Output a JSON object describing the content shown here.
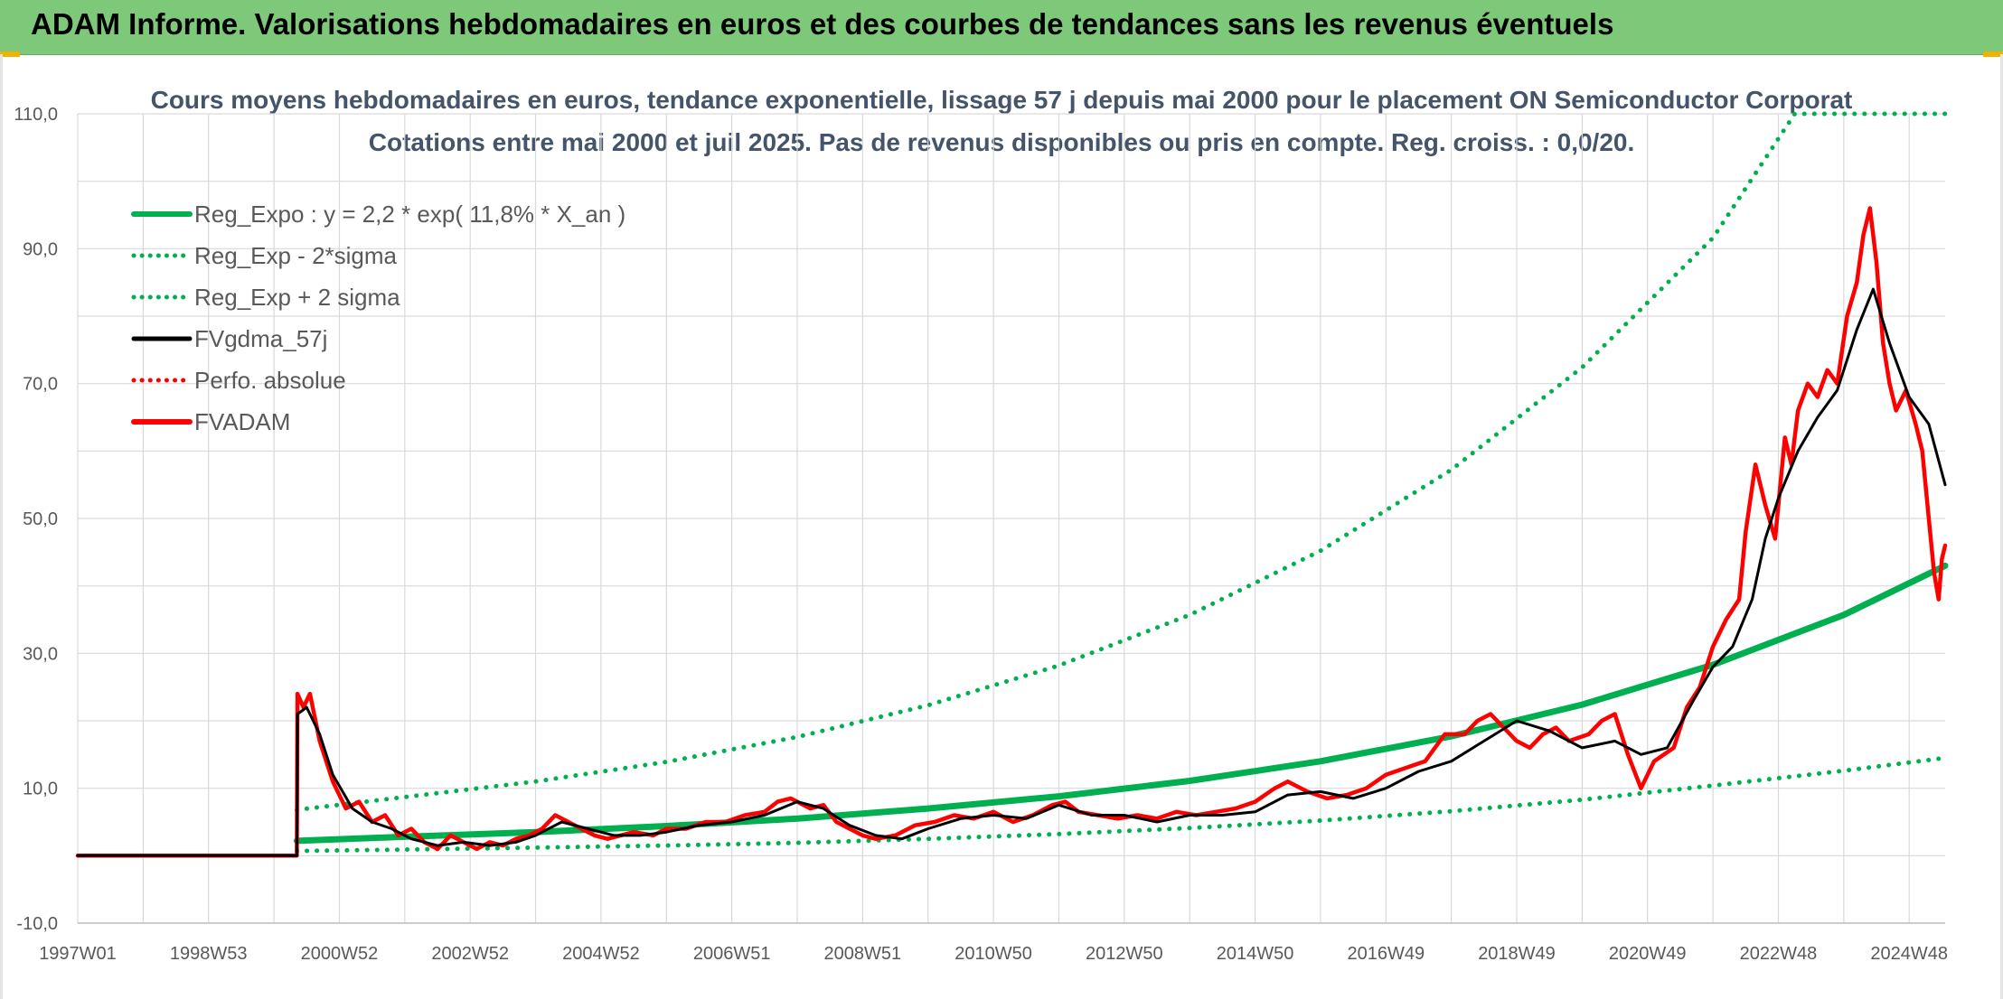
{
  "header": {
    "title": "ADAM Informe. Valorisations hebdomadaires en euros et des courbes de tendances sans les revenus éventuels"
  },
  "colors": {
    "header_bg": "#7ec87a",
    "green": "#00b050",
    "red": "#ff0000",
    "black": "#000000"
  },
  "chart_data": {
    "type": "line",
    "title": "Cours moyens hebdomadaires en euros, tendance exponentielle, lissage 57 j depuis mai 2000 pour le placement ON Semiconductor Corporat",
    "subtitle": "Cotations entre mai 2000 et juil 2025. Pas de revenus disponibles ou pris en compte. Reg. croiss. : 0,0/20.",
    "xlabel": "",
    "ylabel": "",
    "ylim": [
      -10,
      110
    ],
    "y_ticks": [
      "110,0",
      "90,0",
      "70,0",
      "50,0",
      "30,0",
      "10,0",
      "-10,0"
    ],
    "x_range": [
      1997.0,
      2025.55
    ],
    "x_ticks": [
      {
        "label": "1997W01",
        "year": 1997.0
      },
      {
        "label": "1998W53",
        "year": 1999.0
      },
      {
        "label": "2000W52",
        "year": 2001.0
      },
      {
        "label": "2002W52",
        "year": 2003.0
      },
      {
        "label": "2004W52",
        "year": 2005.0
      },
      {
        "label": "2006W51",
        "year": 2007.0
      },
      {
        "label": "2008W51",
        "year": 2009.0
      },
      {
        "label": "2010W50",
        "year": 2011.0
      },
      {
        "label": "2012W50",
        "year": 2013.0
      },
      {
        "label": "2014W50",
        "year": 2015.0
      },
      {
        "label": "2016W49",
        "year": 2017.0
      },
      {
        "label": "2018W49",
        "year": 2019.0
      },
      {
        "label": "2020W49",
        "year": 2021.0
      },
      {
        "label": "2022W48",
        "year": 2023.0
      },
      {
        "label": "2024W48",
        "year": 2025.0
      }
    ],
    "grid": true,
    "legend_position": "top-left",
    "series": [
      {
        "name": "Reg_Expo : y = 2,2 * exp( 11,8% *  X_an )",
        "color": "#00b050",
        "style": "solid",
        "points": [
          [
            2000.35,
            2.2
          ],
          [
            2002,
            2.8
          ],
          [
            2004,
            3.5
          ],
          [
            2006,
            4.4
          ],
          [
            2008,
            5.5
          ],
          [
            2010,
            7.0
          ],
          [
            2012,
            8.8
          ],
          [
            2014,
            11.1
          ],
          [
            2016,
            14.0
          ],
          [
            2018,
            17.7
          ],
          [
            2020,
            22.4
          ],
          [
            2022,
            28.3
          ],
          [
            2024,
            35.7
          ],
          [
            2025.55,
            43.0
          ]
        ]
      },
      {
        "name": "Reg_Exp - 2*sigma",
        "color": "#00b050",
        "style": "dotted",
        "points": [
          [
            2000.35,
            0.7
          ],
          [
            2002,
            0.9
          ],
          [
            2004,
            1.2
          ],
          [
            2006,
            1.5
          ],
          [
            2008,
            1.9
          ],
          [
            2010,
            2.5
          ],
          [
            2012,
            3.2
          ],
          [
            2014,
            4.1
          ],
          [
            2016,
            5.2
          ],
          [
            2018,
            6.6
          ],
          [
            2020,
            8.3
          ],
          [
            2022,
            10.4
          ],
          [
            2024,
            12.6
          ],
          [
            2025.55,
            14.5
          ]
        ]
      },
      {
        "name": "Reg_Exp + 2 sigma",
        "color": "#00b050",
        "style": "dotted",
        "points": [
          [
            2000.35,
            6.8
          ],
          [
            2002,
            8.7
          ],
          [
            2004,
            11.0
          ],
          [
            2006,
            13.9
          ],
          [
            2008,
            17.6
          ],
          [
            2010,
            22.3
          ],
          [
            2012,
            28.2
          ],
          [
            2014,
            35.7
          ],
          [
            2016,
            45.2
          ],
          [
            2018,
            57.2
          ],
          [
            2020,
            72.4
          ],
          [
            2022,
            91.6
          ],
          [
            2023.25,
            110.0
          ],
          [
            2025.55,
            110.0
          ]
        ]
      },
      {
        "name": "FVgdma_57j",
        "color": "#000000",
        "style": "solid",
        "points": [
          [
            1997.0,
            0
          ],
          [
            2000.35,
            0
          ],
          [
            2000.36,
            21
          ],
          [
            2000.5,
            22
          ],
          [
            2000.7,
            18
          ],
          [
            2000.9,
            12
          ],
          [
            2001.2,
            7
          ],
          [
            2001.5,
            5
          ],
          [
            2001.8,
            4
          ],
          [
            2002.1,
            2.5
          ],
          [
            2002.5,
            1.5
          ],
          [
            2002.9,
            2
          ],
          [
            2003.3,
            1.5
          ],
          [
            2003.7,
            2
          ],
          [
            2004.0,
            3
          ],
          [
            2004.4,
            5
          ],
          [
            2004.8,
            4
          ],
          [
            2005.2,
            3
          ],
          [
            2005.6,
            3
          ],
          [
            2006.0,
            3.5
          ],
          [
            2006.5,
            4.5
          ],
          [
            2007.0,
            5
          ],
          [
            2007.5,
            6
          ],
          [
            2008.0,
            8
          ],
          [
            2008.4,
            7
          ],
          [
            2008.8,
            4.5
          ],
          [
            2009.2,
            3
          ],
          [
            2009.6,
            2.5
          ],
          [
            2010.0,
            4
          ],
          [
            2010.5,
            5.5
          ],
          [
            2011.0,
            6
          ],
          [
            2011.5,
            5.5
          ],
          [
            2012.0,
            7.5
          ],
          [
            2012.5,
            6
          ],
          [
            2013.0,
            6
          ],
          [
            2013.5,
            5
          ],
          [
            2014.0,
            6
          ],
          [
            2014.5,
            6
          ],
          [
            2015.0,
            6.5
          ],
          [
            2015.5,
            9
          ],
          [
            2016.0,
            9.5
          ],
          [
            2016.5,
            8.5
          ],
          [
            2017.0,
            10
          ],
          [
            2017.5,
            12.5
          ],
          [
            2018.0,
            14
          ],
          [
            2018.5,
            17
          ],
          [
            2019.0,
            20
          ],
          [
            2019.5,
            18.5
          ],
          [
            2020.0,
            16
          ],
          [
            2020.5,
            17
          ],
          [
            2020.9,
            15
          ],
          [
            2021.3,
            16
          ],
          [
            2021.7,
            23
          ],
          [
            2022.0,
            28
          ],
          [
            2022.3,
            31
          ],
          [
            2022.6,
            38
          ],
          [
            2022.8,
            47
          ],
          [
            2023.0,
            53
          ],
          [
            2023.3,
            60
          ],
          [
            2023.6,
            65
          ],
          [
            2023.9,
            69
          ],
          [
            2024.2,
            78
          ],
          [
            2024.45,
            84
          ],
          [
            2024.7,
            76
          ],
          [
            2025.0,
            68
          ],
          [
            2025.3,
            64
          ],
          [
            2025.55,
            55
          ]
        ]
      },
      {
        "name": "Perfo. absolue",
        "color": "#ff0000",
        "style": "dotted",
        "points": []
      },
      {
        "name": "FVADAM",
        "color": "#ff0000",
        "style": "solid",
        "points": [
          [
            1997.0,
            0
          ],
          [
            2000.35,
            0
          ],
          [
            2000.36,
            24
          ],
          [
            2000.45,
            22
          ],
          [
            2000.55,
            24
          ],
          [
            2000.7,
            17
          ],
          [
            2000.9,
            11
          ],
          [
            2001.1,
            7
          ],
          [
            2001.3,
            8
          ],
          [
            2001.5,
            5
          ],
          [
            2001.7,
            6
          ],
          [
            2001.9,
            3
          ],
          [
            2002.1,
            4
          ],
          [
            2002.3,
            2
          ],
          [
            2002.5,
            1
          ],
          [
            2002.7,
            3
          ],
          [
            2002.9,
            2
          ],
          [
            2003.1,
            1
          ],
          [
            2003.3,
            2
          ],
          [
            2003.5,
            1.5
          ],
          [
            2003.7,
            2.5
          ],
          [
            2003.9,
            3
          ],
          [
            2004.1,
            4
          ],
          [
            2004.3,
            6
          ],
          [
            2004.5,
            5
          ],
          [
            2004.7,
            4
          ],
          [
            2004.9,
            3
          ],
          [
            2005.1,
            2.5
          ],
          [
            2005.3,
            3
          ],
          [
            2005.5,
            3.5
          ],
          [
            2005.8,
            3
          ],
          [
            2006.0,
            4
          ],
          [
            2006.3,
            4
          ],
          [
            2006.6,
            5
          ],
          [
            2006.9,
            5
          ],
          [
            2007.2,
            6
          ],
          [
            2007.5,
            6.5
          ],
          [
            2007.7,
            8
          ],
          [
            2007.9,
            8.5
          ],
          [
            2008.2,
            7
          ],
          [
            2008.4,
            7.5
          ],
          [
            2008.6,
            5
          ],
          [
            2008.8,
            4
          ],
          [
            2009.0,
            3
          ],
          [
            2009.2,
            2.5
          ],
          [
            2009.5,
            3
          ],
          [
            2009.8,
            4.5
          ],
          [
            2010.1,
            5
          ],
          [
            2010.4,
            6
          ],
          [
            2010.7,
            5.5
          ],
          [
            2011.0,
            6.5
          ],
          [
            2011.3,
            5
          ],
          [
            2011.6,
            6
          ],
          [
            2011.9,
            7.5
          ],
          [
            2012.1,
            8
          ],
          [
            2012.3,
            6.5
          ],
          [
            2012.6,
            6
          ],
          [
            2012.9,
            5.5
          ],
          [
            2013.2,
            6
          ],
          [
            2013.5,
            5.5
          ],
          [
            2013.8,
            6.5
          ],
          [
            2014.1,
            6
          ],
          [
            2014.4,
            6.5
          ],
          [
            2014.7,
            7
          ],
          [
            2015.0,
            8
          ],
          [
            2015.3,
            10
          ],
          [
            2015.5,
            11
          ],
          [
            2015.8,
            9.5
          ],
          [
            2016.1,
            8.5
          ],
          [
            2016.4,
            9
          ],
          [
            2016.7,
            10
          ],
          [
            2017.0,
            12
          ],
          [
            2017.3,
            13
          ],
          [
            2017.6,
            14
          ],
          [
            2017.9,
            18
          ],
          [
            2018.2,
            18
          ],
          [
            2018.4,
            20
          ],
          [
            2018.6,
            21
          ],
          [
            2018.8,
            19
          ],
          [
            2019.0,
            17
          ],
          [
            2019.2,
            16
          ],
          [
            2019.4,
            18
          ],
          [
            2019.6,
            19
          ],
          [
            2019.8,
            17
          ],
          [
            2020.1,
            18
          ],
          [
            2020.3,
            20
          ],
          [
            2020.5,
            21
          ],
          [
            2020.7,
            15
          ],
          [
            2020.9,
            10
          ],
          [
            2021.1,
            14
          ],
          [
            2021.4,
            16
          ],
          [
            2021.6,
            22
          ],
          [
            2021.8,
            25
          ],
          [
            2022.0,
            31
          ],
          [
            2022.2,
            35
          ],
          [
            2022.4,
            38
          ],
          [
            2022.5,
            48
          ],
          [
            2022.65,
            58
          ],
          [
            2022.8,
            52
          ],
          [
            2022.95,
            47
          ],
          [
            2023.1,
            62
          ],
          [
            2023.2,
            58
          ],
          [
            2023.3,
            66
          ],
          [
            2023.45,
            70
          ],
          [
            2023.6,
            68
          ],
          [
            2023.75,
            72
          ],
          [
            2023.9,
            70
          ],
          [
            2024.05,
            80
          ],
          [
            2024.2,
            85
          ],
          [
            2024.3,
            92
          ],
          [
            2024.4,
            96
          ],
          [
            2024.5,
            88
          ],
          [
            2024.6,
            76
          ],
          [
            2024.7,
            70
          ],
          [
            2024.8,
            66
          ],
          [
            2024.95,
            69
          ],
          [
            2025.1,
            64
          ],
          [
            2025.2,
            60
          ],
          [
            2025.3,
            50
          ],
          [
            2025.38,
            42
          ],
          [
            2025.45,
            38
          ],
          [
            2025.5,
            44
          ],
          [
            2025.55,
            46
          ]
        ]
      }
    ]
  }
}
